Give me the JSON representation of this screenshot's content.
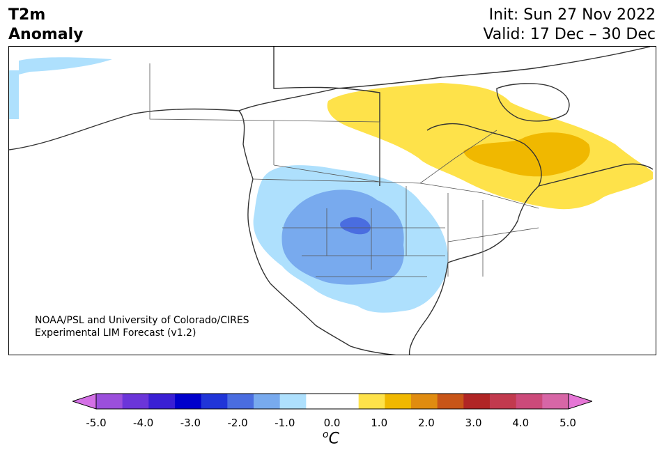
{
  "header": {
    "title_line1": "T2m",
    "title_line2": "Anomaly",
    "init_text": "Init: Sun 27 Nov 2022",
    "valid_text": "Valid: 17 Dec – 30 Dec"
  },
  "credit": {
    "line1": "NOAA/PSL and University of Colorado/CIRES",
    "line2": "Experimental LIM Forecast (v1.2)"
  },
  "colorbar": {
    "ticks": [
      "-5.0",
      "-4.0",
      "-3.0",
      "-2.0",
      "-1.0",
      "0.0",
      "1.0",
      "2.0",
      "3.0",
      "4.0",
      "5.0"
    ],
    "units_base": "C",
    "units_sup": "o",
    "colors": [
      "#d470e6",
      "#9b4fdc",
      "#6b35d9",
      "#3a1fd4",
      "#0000cc",
      "#2035d8",
      "#4a6de0",
      "#78aaee",
      "#aee0fd",
      "#ffffff",
      "#ffffff",
      "#fee24a",
      "#f0b800",
      "#e08c10",
      "#c85518",
      "#b02525",
      "#c23a4e",
      "#cc4a7a",
      "#d766a6",
      "#e676d6"
    ]
  },
  "map": {
    "anomaly_colors": {
      "cold_light": "#aee0fd",
      "cold_medium": "#78aaee",
      "cold_dark": "#4a6de0",
      "warm_light": "#fee24a",
      "warm_medium": "#f0b800"
    }
  }
}
